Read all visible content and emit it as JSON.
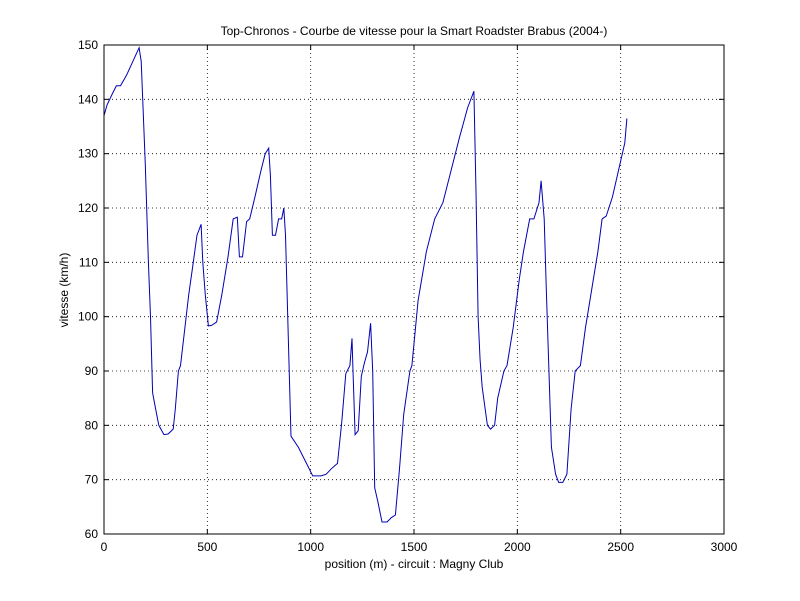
{
  "chart_data": {
    "type": "line",
    "title": "Top-Chronos - Courbe de vitesse pour la Smart Roadster Brabus (2004-)",
    "xlabel": "position (m) - circuit : Magny Club",
    "ylabel": "vitesse (km/h)",
    "xlim": [
      0,
      3000
    ],
    "ylim": [
      60,
      150
    ],
    "xticks": [
      0,
      500,
      1000,
      1500,
      2000,
      2500,
      3000
    ],
    "yticks": [
      60,
      70,
      80,
      90,
      100,
      110,
      120,
      130,
      140,
      150
    ],
    "grid": true,
    "series": [
      {
        "color": "#0000b4",
        "x": [
          0,
          15,
          40,
          60,
          80,
          110,
          140,
          170,
          180,
          200,
          215,
          225,
          235,
          245,
          265,
          290,
          310,
          335,
          345,
          360,
          370,
          390,
          410,
          430,
          450,
          470,
          478,
          490,
          505,
          520,
          545,
          570,
          600,
          625,
          645,
          655,
          670,
          690,
          705,
          730,
          760,
          780,
          797,
          805,
          815,
          830,
          845,
          860,
          870,
          878,
          905,
          940,
          980,
          1010,
          1050,
          1075,
          1100,
          1130,
          1150,
          1170,
          1190,
          1200,
          1205,
          1215,
          1230,
          1245,
          1260,
          1275,
          1290,
          1300,
          1310,
          1325,
          1345,
          1370,
          1390,
          1410,
          1430,
          1450,
          1480,
          1490,
          1520,
          1560,
          1600,
          1640,
          1680,
          1720,
          1760,
          1780,
          1790,
          1800,
          1810,
          1820,
          1830,
          1855,
          1870,
          1890,
          1905,
          1935,
          1950,
          1980,
          2010,
          2030,
          2060,
          2080,
          2105,
          2115,
          2130,
          2140,
          2165,
          2185,
          2200,
          2220,
          2240,
          2260,
          2280,
          2305,
          2330,
          2360,
          2390,
          2410,
          2430,
          2460,
          2490,
          2520,
          2530
        ],
        "y": [
          137,
          139,
          141,
          142.5,
          142.5,
          144.5,
          147,
          149.5,
          147,
          128,
          110,
          100,
          86,
          84,
          80,
          78.3,
          78.4,
          79.3,
          83,
          90,
          91,
          97.5,
          104,
          109.5,
          115,
          117,
          110,
          104,
          98.3,
          98.4,
          99,
          104,
          111,
          118,
          118.3,
          111,
          111,
          117.5,
          118,
          122,
          127,
          130,
          131,
          126,
          115,
          115,
          118,
          118,
          120,
          115,
          78,
          76,
          73,
          70.7,
          70.7,
          71,
          72,
          73,
          80.5,
          89.5,
          91,
          96,
          90,
          78.3,
          79,
          89,
          91.5,
          93.5,
          98.8,
          90,
          68.5,
          66,
          62.2,
          62.2,
          63,
          63.5,
          72,
          82,
          90,
          91,
          103,
          112,
          118,
          121,
          127,
          133,
          138.5,
          140.5,
          141.5,
          123,
          100,
          92,
          87,
          80,
          79.3,
          80,
          85,
          90,
          91,
          98,
          107,
          112,
          118,
          118,
          121,
          125,
          118,
          105,
          76,
          71,
          69.5,
          69.5,
          71,
          83,
          90,
          91,
          98,
          105,
          112,
          118,
          118.5,
          122,
          127,
          132,
          136.5
        ]
      }
    ]
  }
}
